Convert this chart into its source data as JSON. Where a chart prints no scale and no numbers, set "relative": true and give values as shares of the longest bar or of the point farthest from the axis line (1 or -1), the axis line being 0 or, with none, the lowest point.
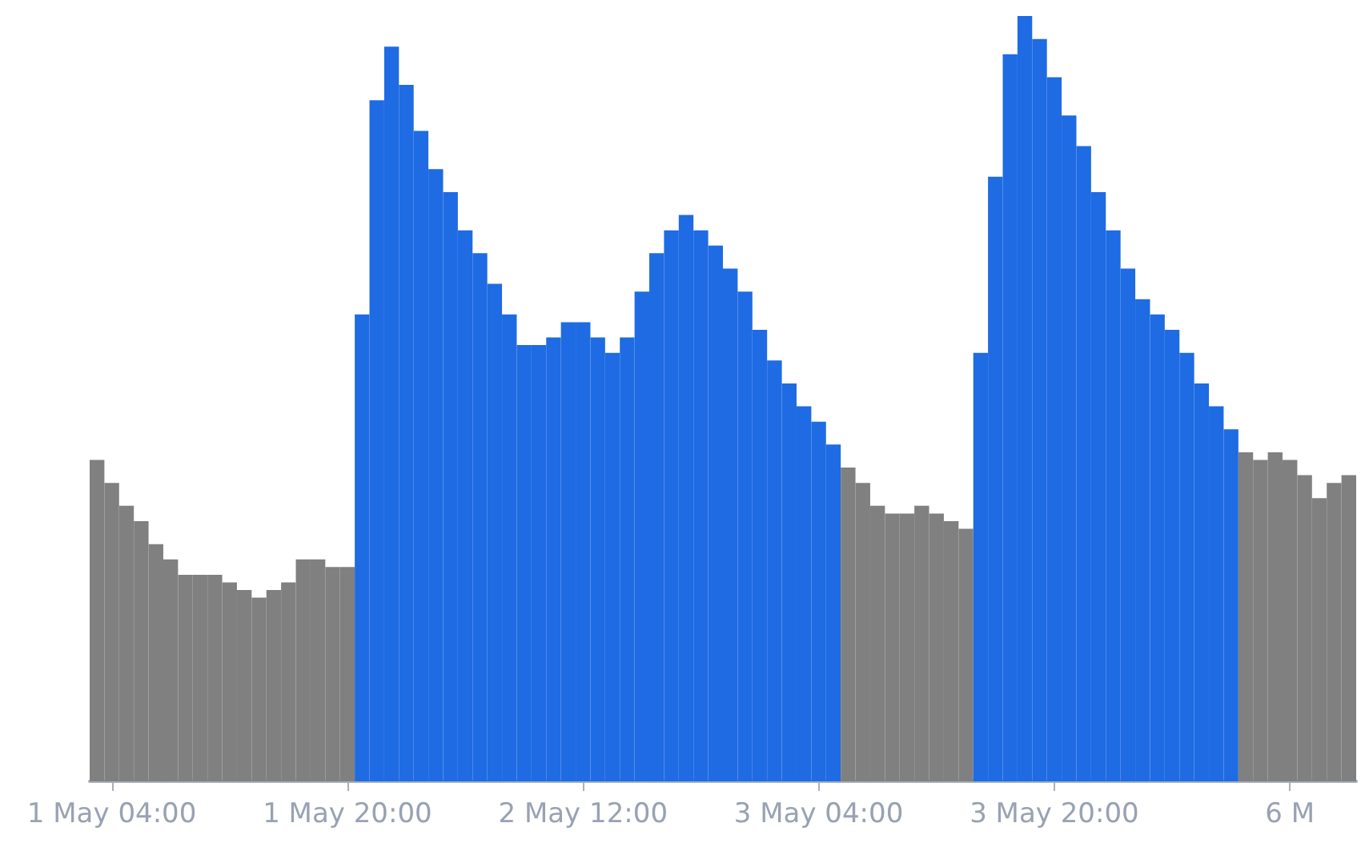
{
  "chart_data": {
    "type": "bar",
    "relative": true,
    "categories": [
      null,
      "1 May 04:00",
      null,
      null,
      null,
      null,
      null,
      null,
      null,
      null,
      null,
      null,
      null,
      null,
      null,
      null,
      null,
      "1 May 20:00",
      null,
      null,
      null,
      null,
      null,
      null,
      null,
      null,
      null,
      null,
      null,
      null,
      null,
      null,
      null,
      "2 May 12:00",
      null,
      null,
      null,
      null,
      null,
      null,
      null,
      null,
      null,
      null,
      null,
      null,
      null,
      null,
      null,
      "3 May 04:00",
      null,
      null,
      null,
      null,
      null,
      null,
      null,
      null,
      null,
      null,
      null,
      null,
      null,
      null,
      null,
      "3 May 20:00",
      null,
      null,
      null,
      null,
      null,
      null,
      null,
      null,
      null,
      null,
      null,
      null,
      null,
      null,
      null,
      "6 M",
      null,
      null,
      null,
      null
    ],
    "values": [
      0.42,
      0.39,
      0.36,
      0.34,
      0.31,
      0.29,
      0.27,
      0.27,
      0.27,
      0.26,
      0.25,
      0.24,
      0.25,
      0.26,
      0.29,
      0.29,
      0.28,
      0.28,
      0.61,
      0.89,
      0.96,
      0.91,
      0.85,
      0.8,
      0.77,
      0.72,
      0.69,
      0.65,
      0.61,
      0.57,
      0.57,
      0.58,
      0.6,
      0.6,
      0.58,
      0.56,
      0.58,
      0.64,
      0.69,
      0.72,
      0.74,
      0.72,
      0.7,
      0.67,
      0.64,
      0.59,
      0.55,
      0.52,
      0.49,
      0.47,
      0.44,
      0.41,
      0.39,
      0.36,
      0.35,
      0.35,
      0.36,
      0.35,
      0.34,
      0.33,
      0.56,
      0.79,
      0.95,
      1,
      0.97,
      0.92,
      0.87,
      0.83,
      0.77,
      0.72,
      0.67,
      0.63,
      0.61,
      0.59,
      0.56,
      0.52,
      0.49,
      0.46,
      0.43,
      0.42,
      0.43,
      0.42,
      0.4,
      0.37,
      0.39,
      0.4
    ],
    "colors": [
      "#808080",
      "#808080",
      "#808080",
      "#808080",
      "#808080",
      "#808080",
      "#808080",
      "#808080",
      "#808080",
      "#808080",
      "#808080",
      "#808080",
      "#808080",
      "#808080",
      "#808080",
      "#808080",
      "#808080",
      "#808080",
      "#1e6be3",
      "#1e6be3",
      "#1e6be3",
      "#1e6be3",
      "#1e6be3",
      "#1e6be3",
      "#1e6be3",
      "#1e6be3",
      "#1e6be3",
      "#1e6be3",
      "#1e6be3",
      "#1e6be3",
      "#1e6be3",
      "#1e6be3",
      "#1e6be3",
      "#1e6be3",
      "#1e6be3",
      "#1e6be3",
      "#1e6be3",
      "#1e6be3",
      "#1e6be3",
      "#1e6be3",
      "#1e6be3",
      "#1e6be3",
      "#1e6be3",
      "#1e6be3",
      "#1e6be3",
      "#1e6be3",
      "#1e6be3",
      "#1e6be3",
      "#1e6be3",
      "#1e6be3",
      "#1e6be3",
      "#808080",
      "#808080",
      "#808080",
      "#808080",
      "#808080",
      "#808080",
      "#808080",
      "#808080",
      "#808080",
      "#1e6be3",
      "#1e6be3",
      "#1e6be3",
      "#1e6be3",
      "#1e6be3",
      "#1e6be3",
      "#1e6be3",
      "#1e6be3",
      "#1e6be3",
      "#1e6be3",
      "#1e6be3",
      "#1e6be3",
      "#1e6be3",
      "#1e6be3",
      "#1e6be3",
      "#1e6be3",
      "#1e6be3",
      "#1e6be3",
      "#808080",
      "#808080",
      "#808080",
      "#808080",
      "#808080",
      "#808080",
      "#808080",
      "#808080"
    ]
  }
}
